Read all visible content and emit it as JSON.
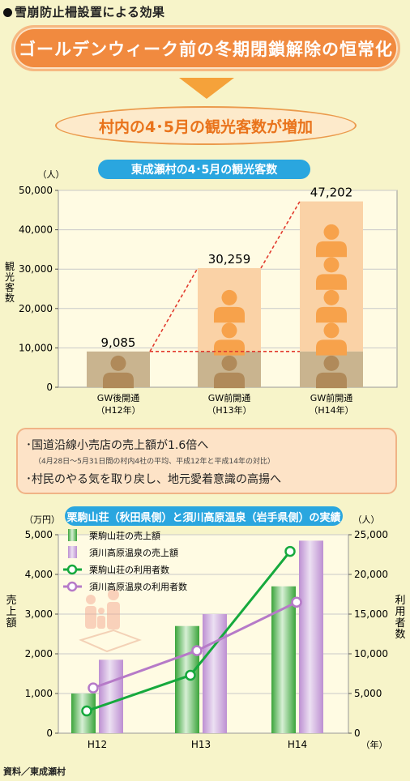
{
  "page": {
    "title": "雪崩防止柵設置による効果",
    "headline": "ゴールデンウィーク前の冬期閉鎖解除の恒常化",
    "result": "村内の4･5月の観光客数が増加",
    "notes": {
      "line1": "･国道沿線小売店の売上額が1.6倍へ",
      "line2": "（4月28日～5月31日間の村内4社の平均、平成12年と平成14年の対比）",
      "line3": "･村民のやる気を取り戻し、地元愛着意識の高揚へ"
    },
    "source": "資料／東成瀬村"
  },
  "colors": {
    "orange": "#f18a3f",
    "figure_orange": "#f7a24b",
    "bar_light": "#fad2a6",
    "bar_base": "#c9b48f",
    "green": "#16a93d",
    "purple": "#b67ac8",
    "tab_blue": "#2aa6df"
  },
  "chart_data": [
    {
      "type": "bar",
      "title": "東成瀬村の4･5月の観光客数",
      "unit_label": "（人）",
      "ylabel": "観光客数",
      "categories": [
        "GW後開通\n（H12年）",
        "GW前開通\n（H13年）",
        "GW前開通\n（H14年）"
      ],
      "values": [
        9085,
        30259,
        47202
      ],
      "value_labels": [
        "9,085",
        "30,259",
        "47,202"
      ],
      "ylim": [
        0,
        50000
      ],
      "yticks": [
        "0",
        "10,000",
        "20,000",
        "30,000",
        "40,000",
        "50,000"
      ],
      "baseline_value": 9085
    },
    {
      "type": "bar+line",
      "title": "栗駒山荘（秋田県側）と須川高原温泉（岩手県側）の実績",
      "left_unit": "（万円）",
      "right_unit": "（人）",
      "left_label": "売上額",
      "right_label": "利用者数",
      "x_unit": "（年）",
      "categories": [
        "H12",
        "H13",
        "H14"
      ],
      "left_ylim": [
        0,
        5000
      ],
      "left_ticks": [
        "0",
        "1,000",
        "2,000",
        "3,000",
        "4,000",
        "5,000"
      ],
      "right_ylim": [
        0,
        25000
      ],
      "right_ticks": [
        "0",
        "5,000",
        "10,000",
        "15,000",
        "20,000",
        "25,000"
      ],
      "series": [
        {
          "name": "栗駒山荘の売上額",
          "kind": "bar",
          "axis": "left",
          "values": [
            1000,
            2700,
            3700
          ]
        },
        {
          "name": "須川高原温泉の売上額",
          "kind": "bar",
          "axis": "left",
          "values": [
            1850,
            3000,
            4850
          ]
        },
        {
          "name": "栗駒山荘の利用者数",
          "kind": "line",
          "axis": "right",
          "values": [
            2800,
            7300,
            22900
          ]
        },
        {
          "name": "須川高原温泉の利用者数",
          "kind": "line",
          "axis": "right",
          "values": [
            5700,
            10400,
            16500
          ]
        }
      ]
    }
  ]
}
